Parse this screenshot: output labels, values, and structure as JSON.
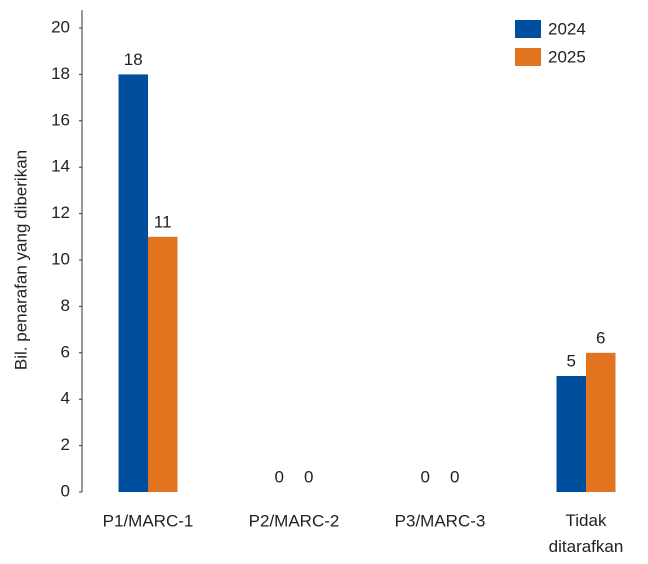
{
  "chart_data": {
    "type": "bar",
    "ylabel": "Bil. penarafan yang diberikan",
    "categories": [
      "P1/MARC-1",
      "P2/MARC-2",
      "P3/MARC-3",
      "Tidak ditarafkan"
    ],
    "series": [
      {
        "name": "2024",
        "color": "#004f9e",
        "values": [
          18,
          0,
          0,
          5
        ]
      },
      {
        "name": "2025",
        "color": "#e2731f",
        "values": [
          11,
          0,
          0,
          6
        ]
      }
    ],
    "ylim": [
      0,
      20
    ],
    "yticks": [
      0,
      2,
      4,
      6,
      8,
      10,
      12,
      14,
      16,
      18,
      20
    ],
    "legend": "top-right"
  }
}
